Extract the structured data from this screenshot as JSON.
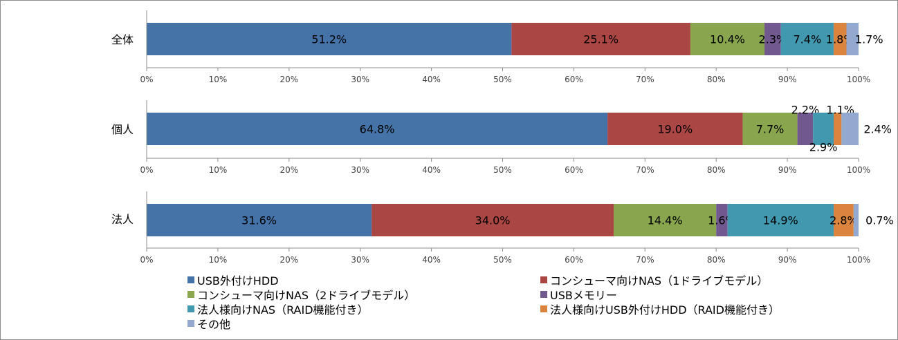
{
  "chart_data": {
    "type": "bar",
    "orientation": "horizontal",
    "stacked": "percent",
    "categories": [
      "全体",
      "個人",
      "法人"
    ],
    "series": [
      {
        "name": "USB外付けHDD",
        "color": "#4572a7",
        "values": [
          51.2,
          64.8,
          31.6
        ],
        "labels": [
          "51.2%",
          "64.8%",
          "31.6%"
        ]
      },
      {
        "name": "コンシューマ向けNAS（1ドライブモデル）",
        "color": "#aa4643",
        "values": [
          25.1,
          19.0,
          34.0
        ],
        "labels": [
          "25.1%",
          "19.0%",
          "34.0%"
        ]
      },
      {
        "name": "コンシューマ向けNAS（2ドライブモデル）",
        "color": "#89a54e",
        "values": [
          10.4,
          7.7,
          14.4
        ],
        "labels": [
          "10.4%",
          "7.7%",
          "14.4%"
        ]
      },
      {
        "name": "USBメモリー",
        "color": "#71588f",
        "values": [
          2.3,
          2.2,
          1.6
        ],
        "labels": [
          "2.3%",
          "2.2%",
          "1.6%"
        ]
      },
      {
        "name": "法人様向けNAS（RAID機能付き）",
        "color": "#4198af",
        "values": [
          7.4,
          2.9,
          14.9
        ],
        "labels": [
          "7.4%",
          "2.9%",
          "14.9%"
        ]
      },
      {
        "name": "法人様向けUSB外付けHDD（RAID機能付き）",
        "color": "#db843d",
        "values": [
          1.8,
          1.1,
          2.8
        ],
        "labels": [
          "1.8%",
          "1.1%",
          "2.8%"
        ]
      },
      {
        "name": "その他",
        "color": "#93a9cf",
        "values": [
          1.7,
          2.4,
          0.7
        ],
        "labels": [
          "1.7%",
          "2.4%",
          "0.7%"
        ]
      }
    ],
    "x_ticks": [
      "0%",
      "10%",
      "20%",
      "30%",
      "40%",
      "50%",
      "60%",
      "70%",
      "80%",
      "90%",
      "100%"
    ],
    "xlim": [
      0,
      100
    ],
    "grid": false,
    "legend_position": "bottom"
  }
}
